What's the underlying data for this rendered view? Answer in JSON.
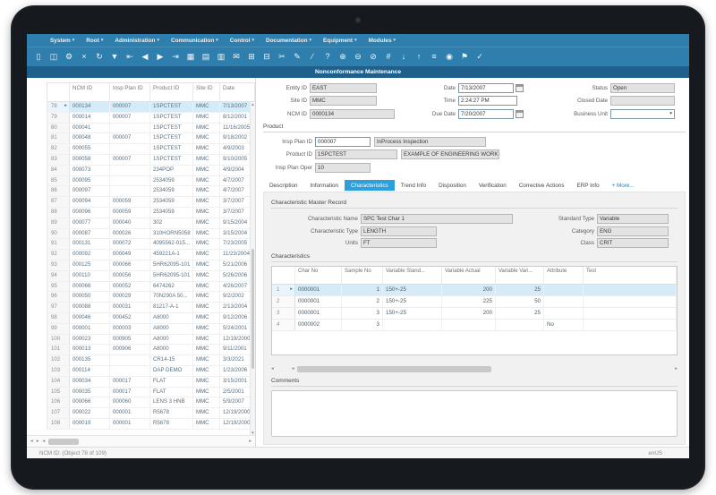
{
  "title": "Nonconformance Maintenance",
  "ui": {
    "menu_caret": "▾",
    "dropdown_caret": "▾",
    "row_marker": "▸",
    "scroll_left": "◂",
    "scroll_right": "▸",
    "scroll_up": "▲",
    "scroll_down": "▼"
  },
  "menu": {
    "items": [
      {
        "label": "System"
      },
      {
        "label": "Root"
      },
      {
        "label": "Administration"
      },
      {
        "label": "Communication"
      },
      {
        "label": "Control"
      },
      {
        "label": "Documentation"
      },
      {
        "label": "Equipment"
      },
      {
        "label": "Modules"
      }
    ]
  },
  "toolbar": {
    "icons": [
      {
        "name": "new-document-icon",
        "glyph": "▯"
      },
      {
        "name": "open-document-icon",
        "glyph": "◫"
      },
      {
        "name": "settings-icon",
        "glyph": "⚙"
      },
      {
        "name": "delete-record-icon",
        "glyph": "×"
      },
      {
        "name": "refresh-icon",
        "glyph": "↻"
      },
      {
        "name": "filter-icon",
        "glyph": "▼"
      },
      {
        "name": "first-record-icon",
        "glyph": "⇤"
      },
      {
        "name": "previous-record-icon",
        "glyph": "◀"
      },
      {
        "name": "next-record-icon",
        "glyph": "▶"
      },
      {
        "name": "last-record-icon",
        "glyph": "⇥"
      },
      {
        "name": "grid-view-icon",
        "glyph": "▦"
      },
      {
        "name": "form-view-icon",
        "glyph": "▤"
      },
      {
        "name": "save-icon",
        "glyph": "▥"
      },
      {
        "name": "email-icon",
        "glyph": "✉"
      },
      {
        "name": "export-icon",
        "glyph": "⊞"
      },
      {
        "name": "import-icon",
        "glyph": "⊟"
      },
      {
        "name": "cut-icon",
        "glyph": "✂"
      },
      {
        "name": "edit-icon",
        "glyph": "✎"
      },
      {
        "name": "annotate-icon",
        "glyph": "∕"
      },
      {
        "name": "help-icon",
        "glyph": "?"
      },
      {
        "name": "add-icon",
        "glyph": "⊕"
      },
      {
        "name": "remove-icon",
        "glyph": "⊖"
      },
      {
        "name": "void-icon",
        "glyph": "⊘"
      },
      {
        "name": "find-number-icon",
        "glyph": "#"
      },
      {
        "name": "download-icon",
        "glyph": "↓"
      },
      {
        "name": "upload-icon",
        "glyph": "↑"
      },
      {
        "name": "menu-list-icon",
        "glyph": "≡"
      },
      {
        "name": "record-icon",
        "glyph": "◉"
      },
      {
        "name": "flag-icon",
        "glyph": "⚑"
      },
      {
        "name": "approve-icon",
        "glyph": "✓"
      }
    ]
  },
  "header_form": {
    "entity_id": {
      "label": "Entity ID",
      "value": "EAST"
    },
    "site_id": {
      "label": "Site ID",
      "value": "MMC"
    },
    "ncm_id": {
      "label": "NCM ID",
      "value": "0000134"
    },
    "date": {
      "label": "Date",
      "value": "7/13/2007"
    },
    "time": {
      "label": "Time",
      "value": "2:24:27 PM"
    },
    "due_date": {
      "label": "Due Date",
      "value": "7/20/2007"
    },
    "status": {
      "label": "Status",
      "value": "Open"
    },
    "closed_date": {
      "label": "Closed Date",
      "value": ""
    },
    "business_unit": {
      "label": "Business Unit",
      "value": ""
    }
  },
  "product": {
    "heading": "Product",
    "insp_plan_id": {
      "label": "Insp Plan ID",
      "value": "000007",
      "description": "InProcess Inspection"
    },
    "product_id": {
      "label": "Product ID",
      "value": "1SPCTEST",
      "description": "EXAMPLE OF ENGINEERING WORK..."
    },
    "insp_plan_oper": {
      "label": "Insp Plan Oper",
      "value": "10"
    }
  },
  "tabs": [
    {
      "label": "Description"
    },
    {
      "label": "Information"
    },
    {
      "label": "Characteristics",
      "active": true
    },
    {
      "label": "Trend Info"
    },
    {
      "label": "Disposition"
    },
    {
      "label": "Verification"
    },
    {
      "label": "Corrective Actions"
    },
    {
      "label": "ERP Info"
    },
    {
      "label": "+ More...",
      "more": true
    }
  ],
  "cmr": {
    "heading": "Characteristic Master Record",
    "char_name": {
      "label": "Characteristic Name",
      "value": "SPC Test Char 1"
    },
    "char_type": {
      "label": "Characteristic Type",
      "value": "LENGTH"
    },
    "units": {
      "label": "Units",
      "value": "FT"
    },
    "standard_type": {
      "label": "Standard Type",
      "value": "Variable"
    },
    "category": {
      "label": "Category",
      "value": "ENG"
    },
    "class": {
      "label": "Class",
      "value": "CRIT"
    }
  },
  "characteristics": {
    "heading": "Characteristics",
    "columns": [
      "Char No",
      "Sample No",
      "Variable Stand...",
      "Variable Actual",
      "Variable Vari...",
      "Attribute",
      "Test"
    ],
    "rows": [
      {
        "num": "1",
        "selected": true,
        "cells": [
          "0000001",
          "1",
          "150+-25",
          "200",
          "25",
          "",
          ""
        ]
      },
      {
        "num": "2",
        "selected": false,
        "cells": [
          "0000001",
          "2",
          "150+-25",
          "225",
          "50",
          "",
          ""
        ]
      },
      {
        "num": "3",
        "selected": false,
        "cells": [
          "0000001",
          "3",
          "150+-25",
          "200",
          "25",
          "",
          ""
        ]
      },
      {
        "num": "4",
        "selected": false,
        "cells": [
          "0000002",
          "3",
          "",
          "",
          "",
          "No",
          ""
        ]
      }
    ]
  },
  "comments": {
    "label": "Comments",
    "value": ""
  },
  "left_table": {
    "columns": [
      "NCM ID",
      "Insp Plan ID",
      "Product ID",
      "Site ID",
      "Date"
    ],
    "selected_row": "78",
    "rows": [
      [
        "78",
        "000134",
        "000007",
        "1SPCTEST",
        "MMC",
        "7/13/2007"
      ],
      [
        "79",
        "000014",
        "000007",
        "1SPCTEST",
        "MMC",
        "8/12/2001"
      ],
      [
        "80",
        "000041",
        "",
        "1SPCTEST",
        "MMC",
        "11/16/2005"
      ],
      [
        "81",
        "000048",
        "000007",
        "1SPCTEST",
        "MMC",
        "9/18/2002"
      ],
      [
        "82",
        "000055",
        "",
        "1SPCTEST",
        "MMC",
        "4/9/2003"
      ],
      [
        "83",
        "000058",
        "000007",
        "1SPCTEST",
        "MMC",
        "9/10/2005"
      ],
      [
        "84",
        "000073",
        "",
        "234POP",
        "MMC",
        "4/9/2004"
      ],
      [
        "85",
        "000095",
        "",
        "2534059",
        "MMC",
        "4/7/2007"
      ],
      [
        "86",
        "000097",
        "",
        "2534059",
        "MMC",
        "4/7/2007"
      ],
      [
        "87",
        "000094",
        "000059",
        "2534059",
        "MMC",
        "3/7/2007"
      ],
      [
        "88",
        "000096",
        "000059",
        "2534059",
        "MMC",
        "3/7/2007"
      ],
      [
        "89",
        "000077",
        "000040",
        "302",
        "MMC",
        "9/15/2004"
      ],
      [
        "90",
        "000087",
        "000026",
        "310HORN5058",
        "MMC",
        "3/15/2004"
      ],
      [
        "91",
        "000131",
        "000072",
        "4095562-015...",
        "MMC",
        "7/23/2005"
      ],
      [
        "92",
        "000092",
        "000049",
        "459221A-1",
        "MMC",
        "11/23/2004"
      ],
      [
        "93",
        "000125",
        "000066",
        "5HR62095-101",
        "MMC",
        "5/21/2006"
      ],
      [
        "94",
        "000110",
        "000056",
        "5HR62095-101",
        "MMC",
        "5/26/2006"
      ],
      [
        "95",
        "000066",
        "000052",
        "6474262",
        "MMC",
        "4/26/2007"
      ],
      [
        "96",
        "000050",
        "000029",
        "70N290A 50...",
        "MMC",
        "9/2/2002"
      ],
      [
        "97",
        "000088",
        "000031",
        "81217-A-1",
        "MMC",
        "2/13/2004"
      ],
      [
        "98",
        "000046",
        "000452",
        "A8000",
        "MMC",
        "9/12/2006"
      ],
      [
        "99",
        "000001",
        "000003",
        "A8000",
        "MMC",
        "5/24/2001"
      ],
      [
        "100",
        "000023",
        "000905",
        "A8000",
        "MMC",
        "12/19/2000"
      ],
      [
        "101",
        "000013",
        "000906",
        "A8000",
        "MMC",
        "9/11/2001"
      ],
      [
        "102",
        "000135",
        "",
        "CR14-15",
        "MMC",
        "3/3/2021"
      ],
      [
        "103",
        "000114",
        "",
        "DAP DEMO",
        "MMC",
        "1/23/2006"
      ],
      [
        "104",
        "000034",
        "000017",
        "FLAT",
        "MMC",
        "3/15/2001"
      ],
      [
        "105",
        "000035",
        "000017",
        "FLAT",
        "MMC",
        "2/5/2001"
      ],
      [
        "106",
        "000066",
        "000060",
        "LENS 3 HNB",
        "MMC",
        "5/9/2007"
      ],
      [
        "107",
        "000022",
        "000001",
        "R5678",
        "MMC",
        "12/19/2000"
      ],
      [
        "108",
        "000019",
        "000001",
        "R5678",
        "MMC",
        "12/19/2000"
      ],
      [
        "109",
        "000100",
        "000060",
        "V-6245-001",
        "MMC",
        "9/01/2007"
      ]
    ]
  },
  "status_bar": {
    "left": "NCM ID: (Object 78 of 109)",
    "right": "enUS"
  }
}
